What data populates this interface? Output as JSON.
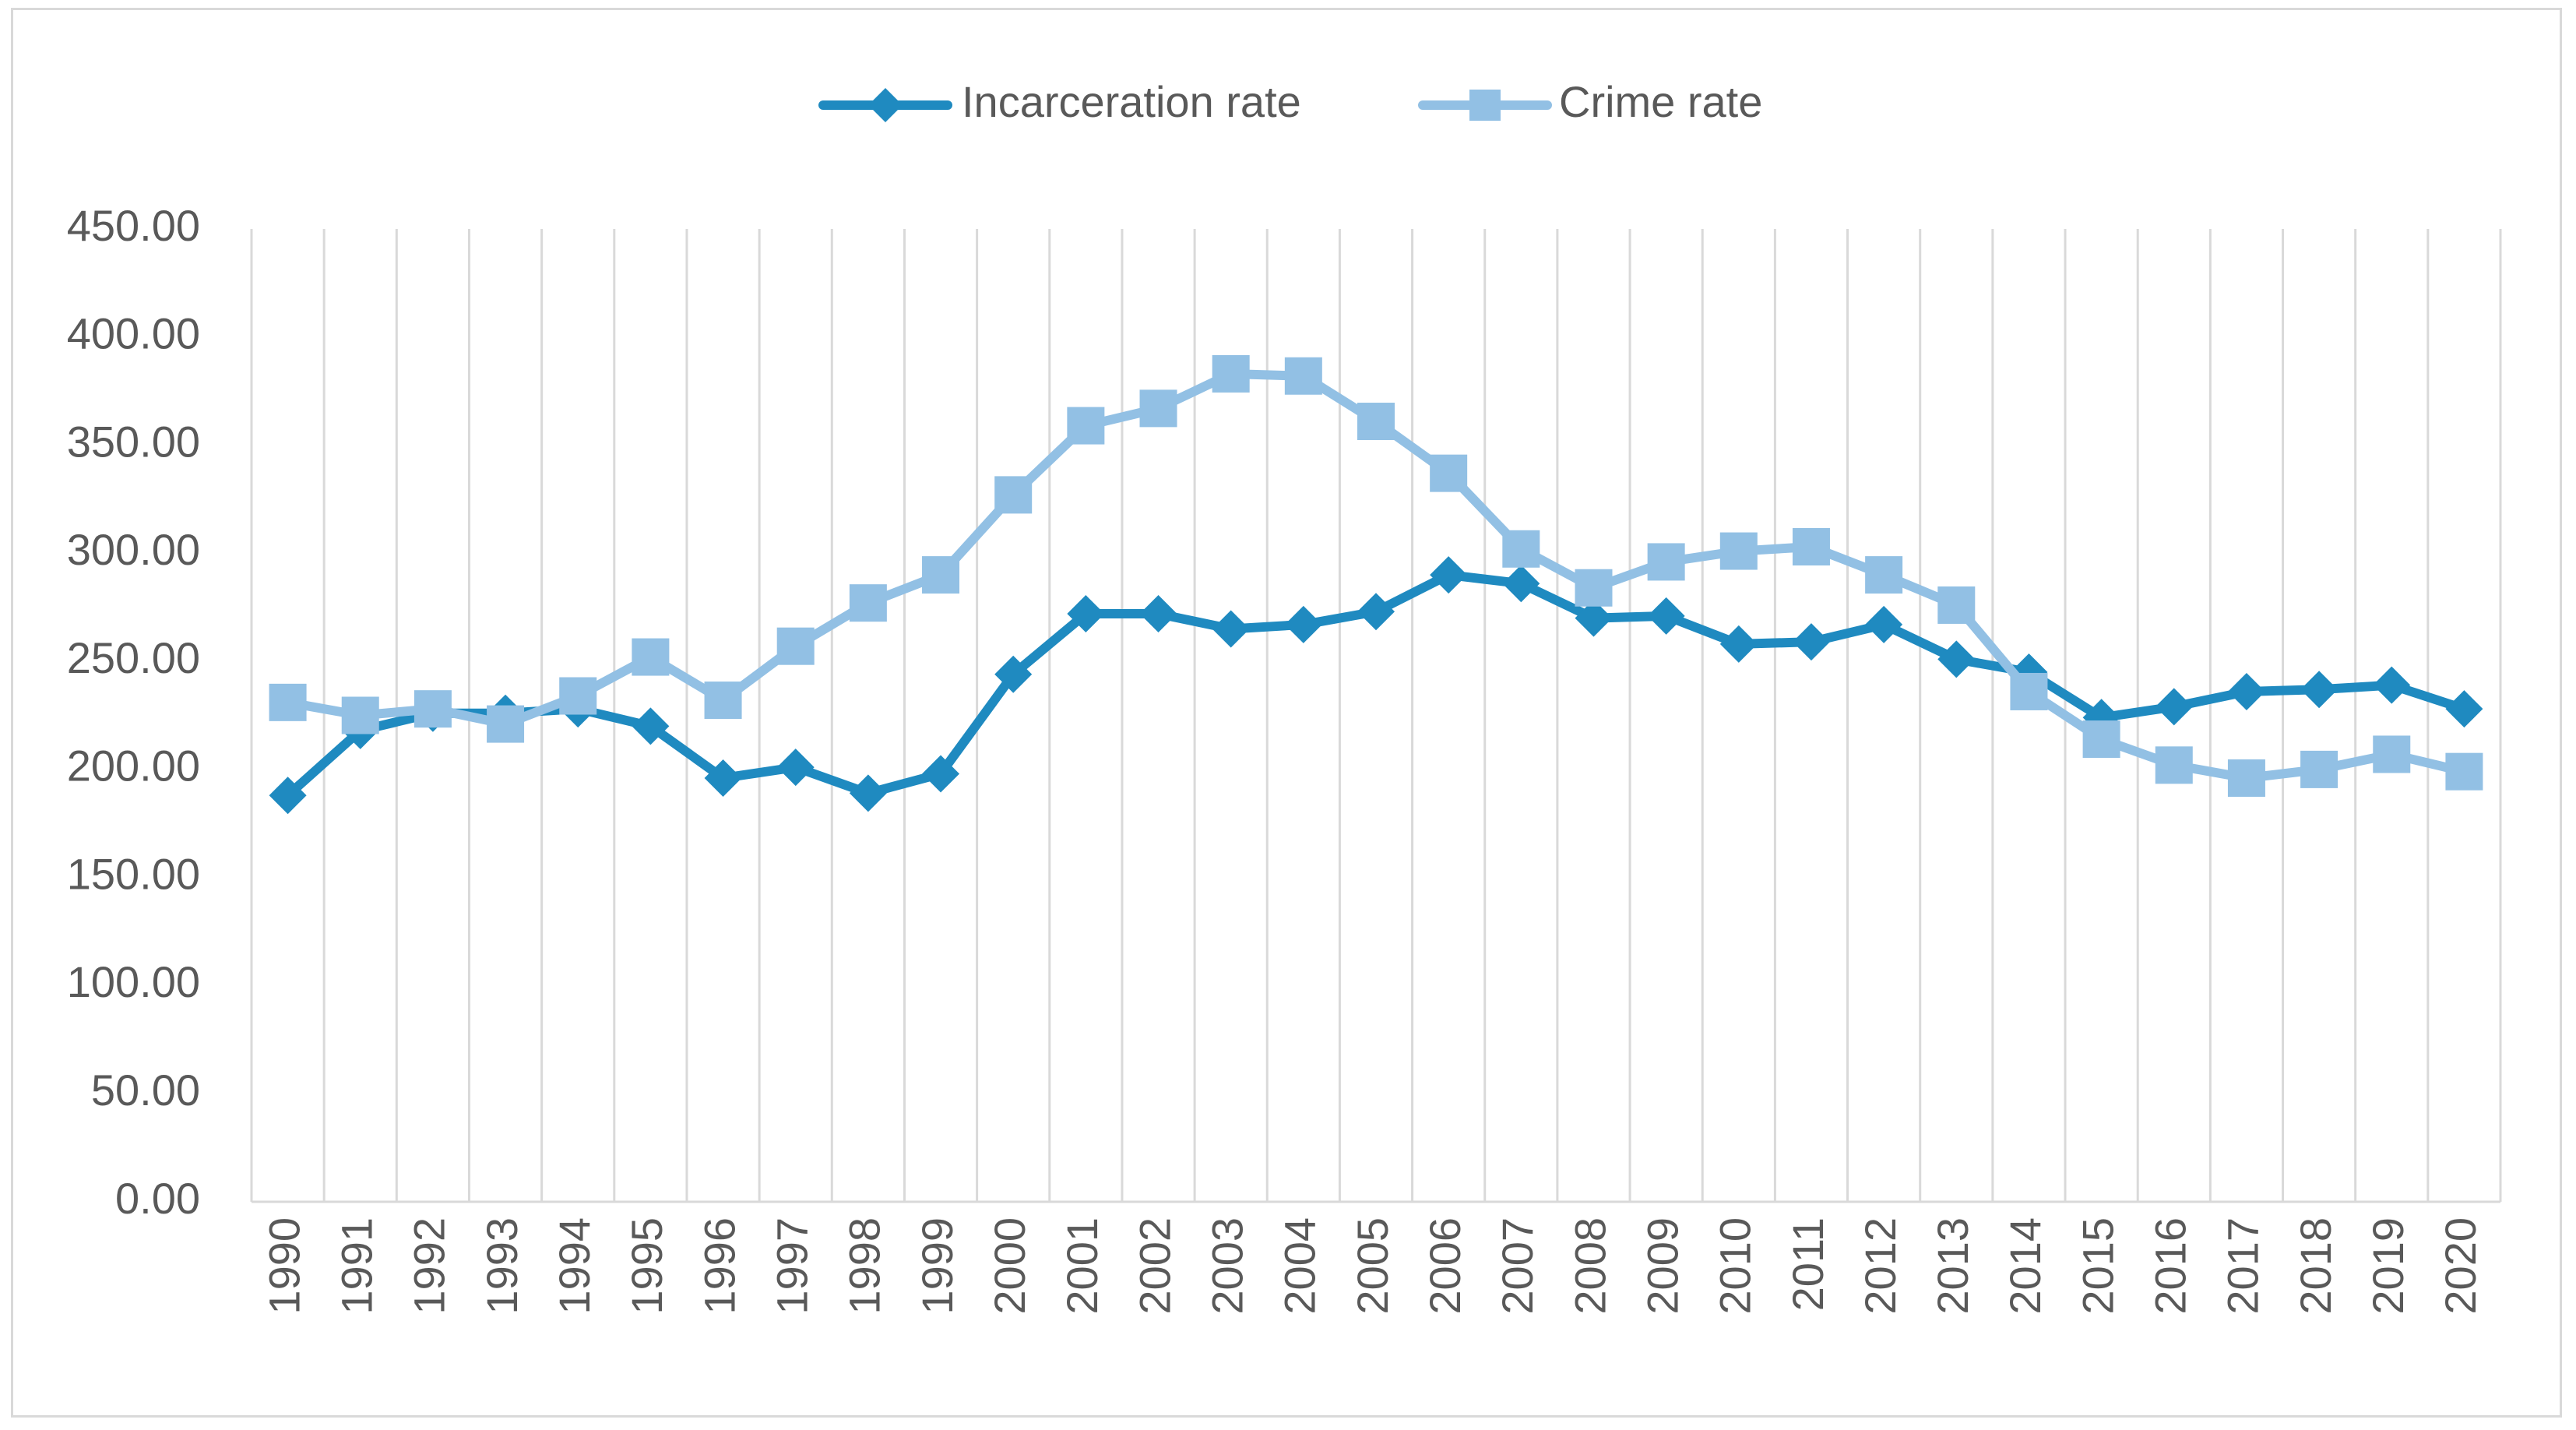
{
  "chart_data": {
    "type": "line",
    "title": "",
    "xlabel": "",
    "ylabel": "",
    "ylim": [
      0,
      450
    ],
    "ytick_labels": [
      "0.00",
      "50.00",
      "100.00",
      "150.00",
      "200.00",
      "250.00",
      "300.00",
      "350.00",
      "400.00",
      "450.00"
    ],
    "categories": [
      "1990",
      "1991",
      "1992",
      "1993",
      "1994",
      "1995",
      "1996",
      "1997",
      "1998",
      "1999",
      "2000",
      "2001",
      "2002",
      "2003",
      "2004",
      "2005",
      "2006",
      "2007",
      "2008",
      "2009",
      "2010",
      "2011",
      "2012",
      "2013",
      "2014",
      "2015",
      "2016",
      "2017",
      "2018",
      "2019",
      "2020"
    ],
    "grid": "vertical",
    "legend_position": "top-center",
    "series": [
      {
        "name": "Incarceration rate",
        "marker": "diamond",
        "color": "#1f8ac0",
        "values": [
          188,
          218,
          226,
          226,
          228,
          220,
          196,
          201,
          189,
          198,
          244,
          272,
          272,
          265,
          267,
          273,
          290,
          286,
          270,
          271,
          258,
          259,
          267,
          251,
          245,
          224,
          229,
          236,
          237,
          239,
          228
        ]
      },
      {
        "name": "Crime rate",
        "marker": "square",
        "color": "#92c0e4",
        "values": [
          231,
          225,
          228,
          221,
          234,
          252,
          232,
          257,
          277,
          290,
          327,
          359,
          367,
          383,
          382,
          361,
          337,
          302,
          284,
          296,
          301,
          303,
          290,
          276,
          236,
          214,
          202,
          196,
          200,
          207,
          199
        ]
      }
    ]
  }
}
